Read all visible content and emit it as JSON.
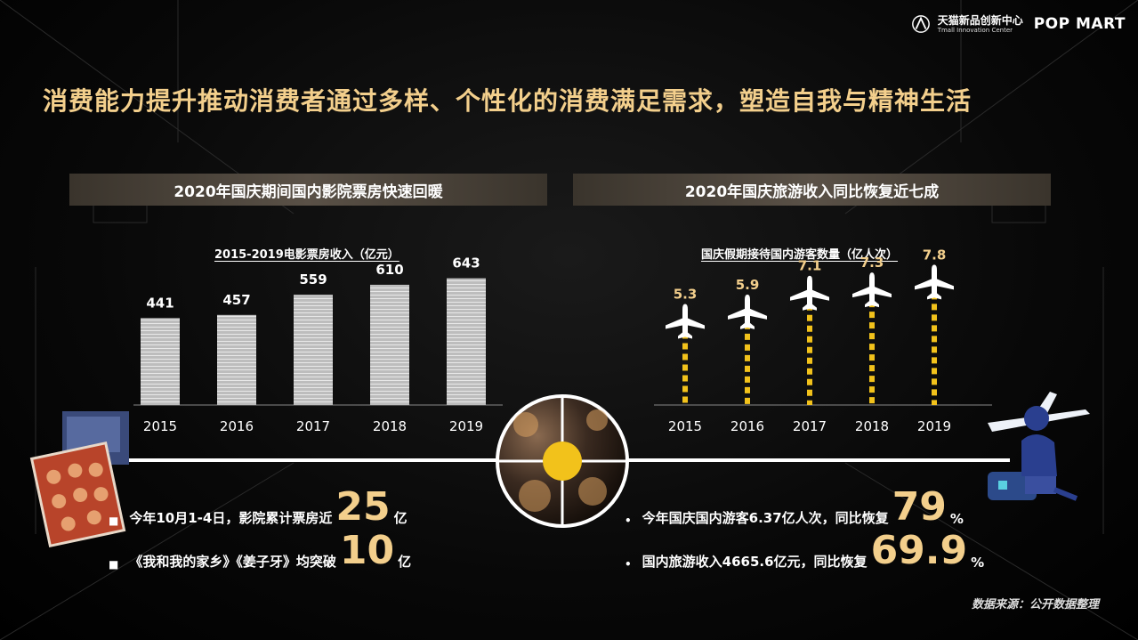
{
  "header": {
    "tmall_cn": "天猫新品创新中心",
    "tmall_en": "Tmall Innovation Center",
    "brand": "POP MART"
  },
  "main_title": "消费能力提升推动消费者通过多样、个性化的消费满足需求，塑造自我与精神生活",
  "left_section": {
    "title": "2020年国庆期间国内影院票房快速回暖",
    "stats": [
      {
        "prefix": "今年10月1-4日，影院累计票房近",
        "value": "25",
        "suffix": "亿"
      },
      {
        "prefix": "《我和我的家乡》《姜子牙》均突破",
        "value": "10",
        "suffix": "亿"
      }
    ]
  },
  "right_section": {
    "title": "2020年国庆旅游收入同比恢复近七成",
    "stats": [
      {
        "prefix": "今年国庆国内游客6.37亿人次，同比恢复",
        "value": "79",
        "suffix": "%"
      },
      {
        "prefix": "国内旅游收入4665.6亿元，同比恢复",
        "value": "69.9",
        "suffix": "%"
      }
    ]
  },
  "source": "数据来源：公开数据整理",
  "chart_data": [
    {
      "type": "bar",
      "title": "2015-2019电影票房收入（亿元）",
      "categories": [
        "2015",
        "2016",
        "2017",
        "2018",
        "2019"
      ],
      "values": [
        441,
        457,
        559,
        610,
        643
      ],
      "ylim": [
        0,
        700
      ],
      "color": "#bdbdbd"
    },
    {
      "type": "bar",
      "title": "国庆假期接待国内游客数量（亿人次）",
      "categories": [
        "2015",
        "2016",
        "2017",
        "2018",
        "2019"
      ],
      "values": [
        5.3,
        5.9,
        7.1,
        7.3,
        7.8
      ],
      "ylim": [
        0,
        8.5
      ],
      "color": "#f2c21b"
    }
  ]
}
